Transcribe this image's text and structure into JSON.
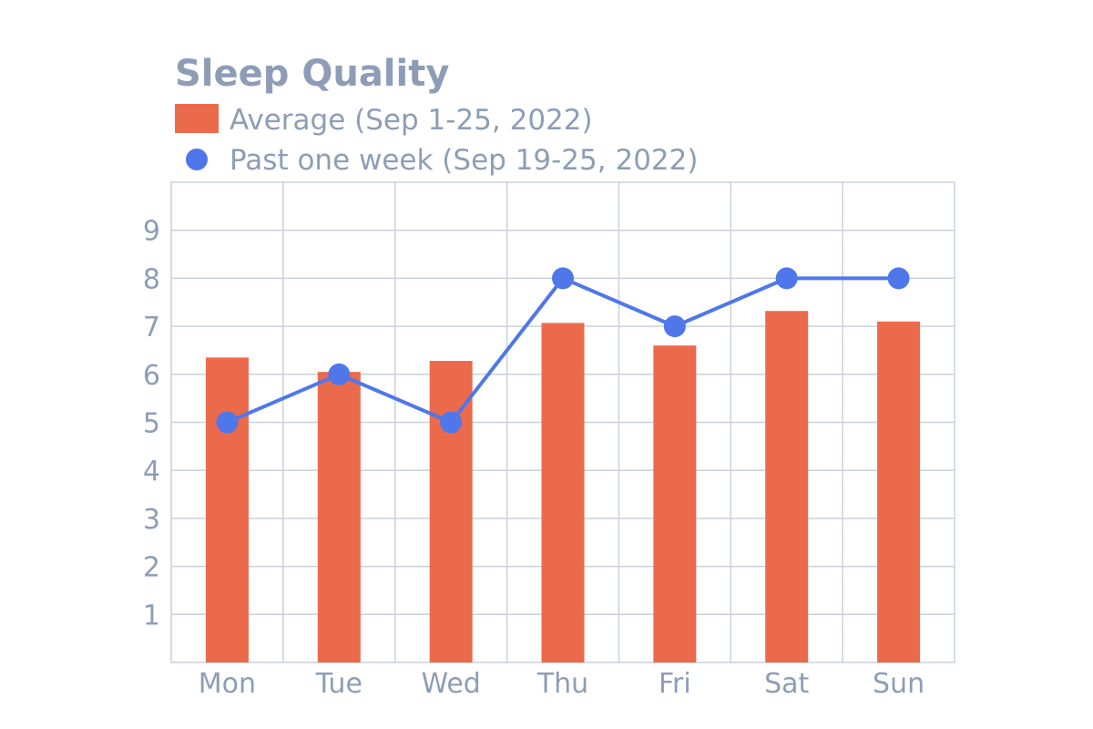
{
  "colors": {
    "text": "#8e9db6",
    "grid": "#c9d0dc",
    "bar": "#ec6a4c",
    "line": "#4f77ea"
  },
  "chart_data": {
    "type": "bar",
    "title": "Sleep Quality",
    "xlabel": "",
    "ylabel": "",
    "categories": [
      "Mon",
      "Tue",
      "Wed",
      "Thu",
      "Fri",
      "Sat",
      "Sun"
    ],
    "ylim": [
      0,
      10
    ],
    "yticks": [
      1,
      2,
      3,
      4,
      5,
      6,
      7,
      8,
      9
    ],
    "grid": true,
    "legend_position": "top-left",
    "series": [
      {
        "name": "Average (Sep 1-25, 2022)",
        "kind": "bar",
        "values": [
          6.35,
          6.05,
          6.28,
          7.07,
          6.6,
          7.32,
          7.1
        ]
      },
      {
        "name": "Past one week (Sep 19-25, 2022)",
        "kind": "line",
        "values": [
          5,
          6,
          5,
          8,
          7,
          8,
          8
        ]
      }
    ]
  }
}
